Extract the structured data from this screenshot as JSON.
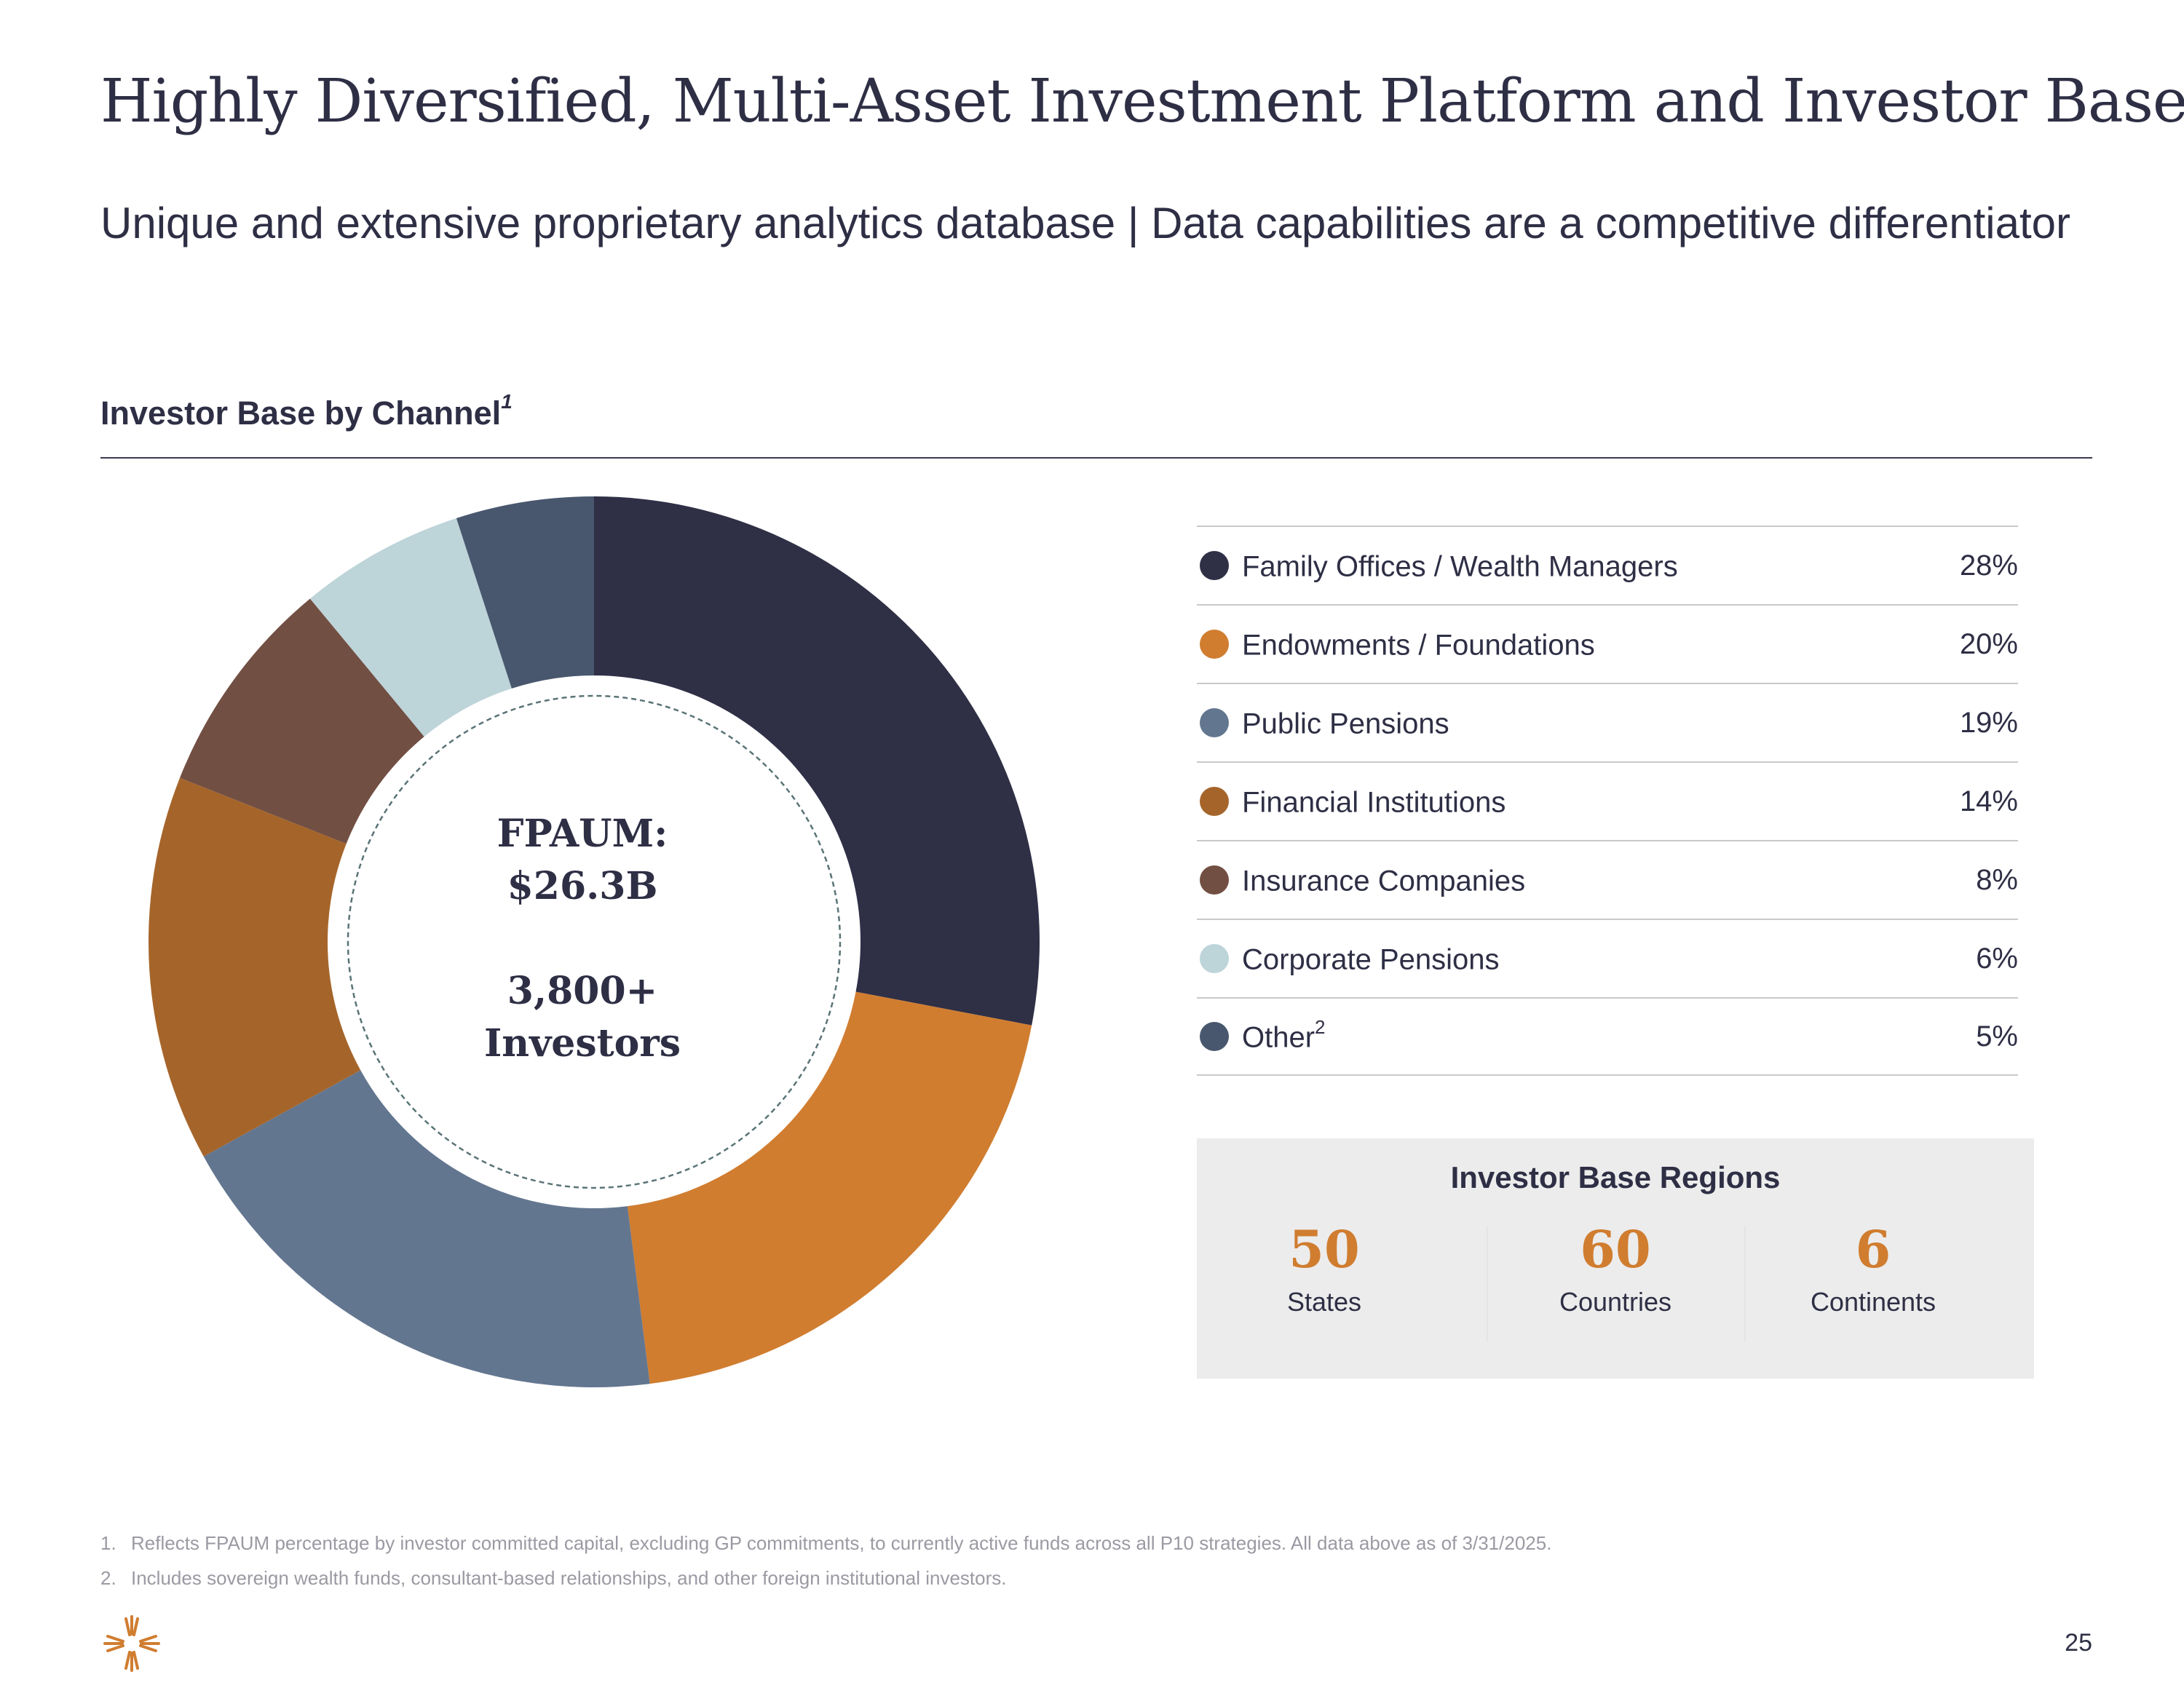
{
  "header": {
    "title": "Highly Diversified, Multi-Asset Investment Platform and Investor Base",
    "subtitle": "Unique and extensive proprietary analytics database | Data capabilities are a competitive differentiator"
  },
  "section": {
    "title": "Investor Base by Channel",
    "title_sup": "1"
  },
  "center": {
    "line1": "FPAUM:",
    "line2": "$26.3B",
    "line3": "3,800+",
    "line4": "Investors"
  },
  "chart_data": {
    "type": "pie",
    "style": "donut",
    "title": "Investor Base by Channel",
    "categories": [
      "Family Offices / Wealth Managers",
      "Endowments / Foundations",
      "Public Pensions",
      "Financial Institutions",
      "Insurance Companies",
      "Corporate Pensions",
      "Other"
    ],
    "values": [
      28,
      20,
      19,
      14,
      8,
      6,
      5
    ],
    "unit": "%",
    "colors": [
      "#2f2f46",
      "#d07d30",
      "#63768f",
      "#a5652a",
      "#724f43",
      "#bdd4d9",
      "#48576d"
    ],
    "legend_position": "right"
  },
  "legend": [
    {
      "label": "Family Offices / Wealth Managers",
      "sup": "",
      "value": "28%",
      "color": "#2f2f46"
    },
    {
      "label": "Endowments / Foundations",
      "sup": "",
      "value": "20%",
      "color": "#d07d30"
    },
    {
      "label": "Public Pensions",
      "sup": "",
      "value": "19%",
      "color": "#63768f"
    },
    {
      "label": "Financial Institutions",
      "sup": "",
      "value": "14%",
      "color": "#a5652a"
    },
    {
      "label": "Insurance Companies",
      "sup": "",
      "value": "8%",
      "color": "#724f43"
    },
    {
      "label": "Corporate Pensions",
      "sup": "",
      "value": "6%",
      "color": "#bdd4d9"
    },
    {
      "label": "Other",
      "sup": "2",
      "value": "5%",
      "color": "#48576d"
    }
  ],
  "regions": {
    "title": "Investor Base Regions",
    "items": [
      {
        "value": "50",
        "label": "States"
      },
      {
        "value": "60",
        "label": "Countries"
      },
      {
        "value": "6",
        "label": "Continents"
      }
    ]
  },
  "footnotes": [
    {
      "num": "1.",
      "text": "Reflects FPAUM percentage by investor committed capital, excluding GP commitments, to currently active funds across all P10 strategies. All data above as of 3/31/2025."
    },
    {
      "num": "2.",
      "text": "Includes sovereign wealth funds, consultant-based relationships, and other foreign institutional investors."
    }
  ],
  "page_number": "25",
  "logo_icon": "starburst-logo-icon",
  "colors": {
    "accent": "#d07d30",
    "text": "#2e2f45"
  }
}
